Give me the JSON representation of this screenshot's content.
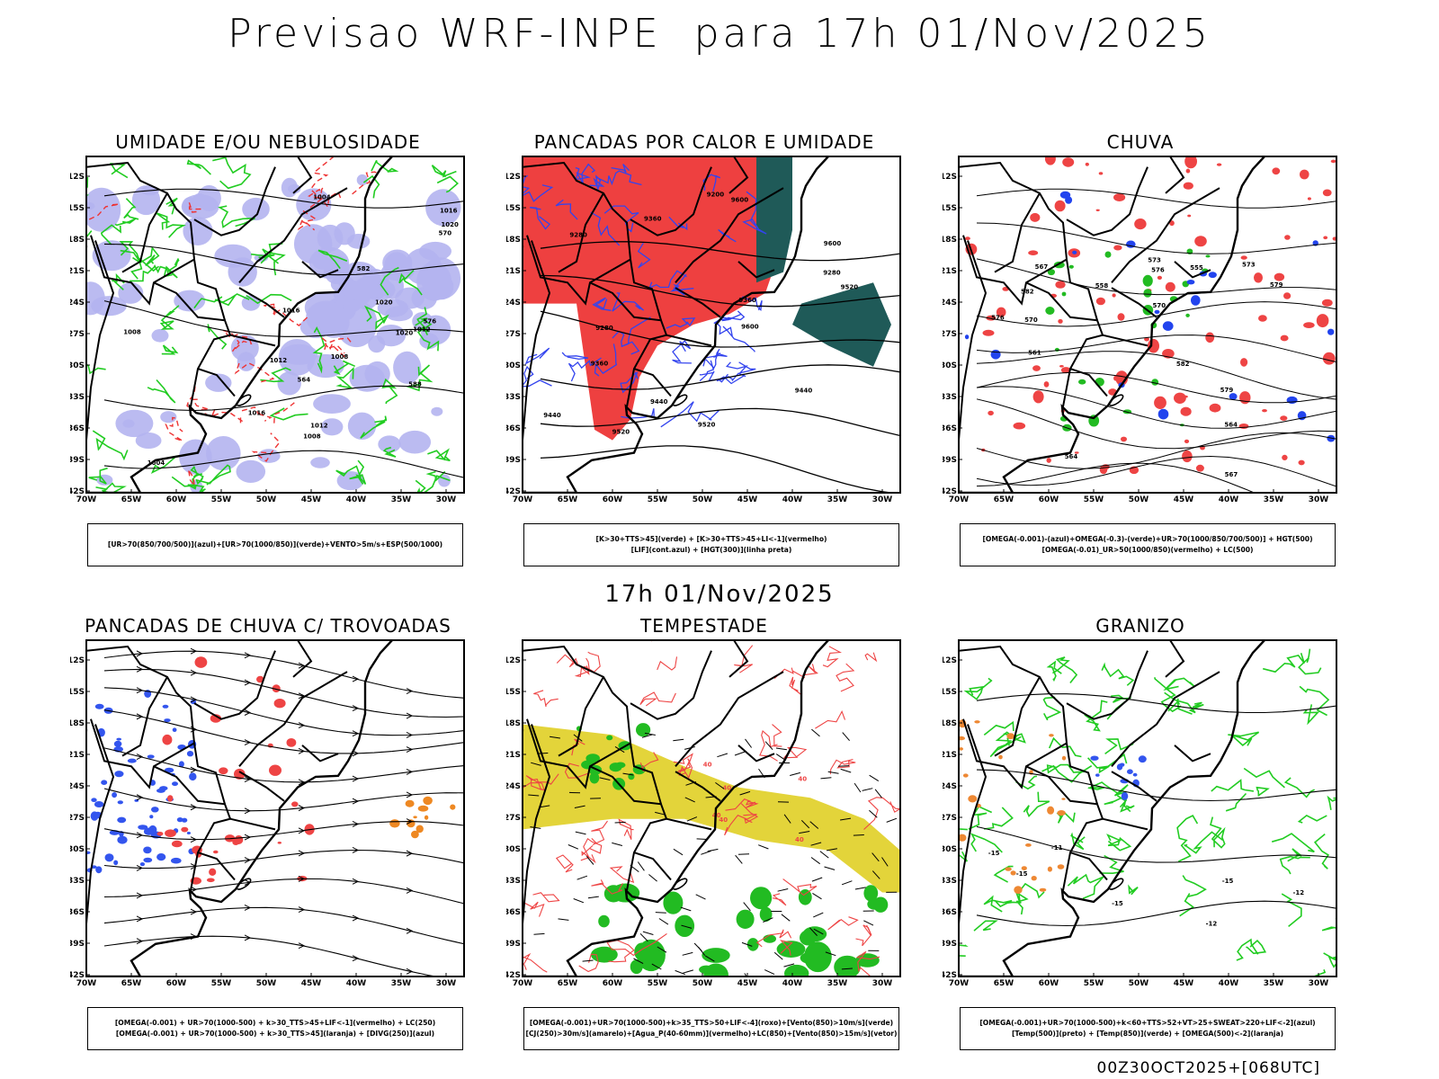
{
  "header": {
    "title": "Previsao WRF-INPE  para 17h 01/Nov/2025",
    "subtitle": "17h 01/Nov/2025",
    "footer": "00Z30OCT2025+[068UTC]"
  },
  "axes": {
    "lat_labels": [
      "12S",
      "15S",
      "18S",
      "21S",
      "24S",
      "27S",
      "30S",
      "33S",
      "36S",
      "39S",
      "42S"
    ],
    "lon_labels": [
      "70W",
      "65W",
      "60W",
      "55W",
      "50W",
      "45W",
      "40W",
      "35W",
      "30W"
    ]
  },
  "panels": [
    {
      "title": "UMIDADE E/OU NEBULOSIDADE",
      "legend": [
        "[UR>70(850/700/500)](azul)+[UR>70(1000/850)](verde)+VENTO>5m/s+ESP(500/1000)"
      ],
      "contour_labels": [
        "1004",
        "1008",
        "1008",
        "1012",
        "1016",
        "1020",
        "1020",
        "1012",
        "1016",
        "1020",
        "1016",
        "1012",
        "1008",
        "1004",
        "564",
        "570",
        "576",
        "582",
        "588"
      ]
    },
    {
      "title": "PANCADAS POR CALOR E UMIDADE",
      "legend": [
        "[K>30+TTS>45](verde) + [K>30+TTS>45+LI<-1](vermelho)",
        "[LIF](cont.azul) + [HGT(300)](linha preta)"
      ],
      "contour_labels": [
        "9600",
        "9520",
        "9440",
        "9360",
        "9280",
        "9200",
        "9600",
        "9520",
        "9440",
        "9360",
        "9280",
        "9600",
        "9520",
        "9440",
        "9360",
        "9280"
      ]
    },
    {
      "title": "CHUVA",
      "legend": [
        "[OMEGA(-0.001)-(azul)+OMEGA(-0.3)-(verde)+UR>70(1000/850/700/500)] + HGT(500)",
        "[OMEGA(-0.01)_UR>50(1000/850)(vermelho) + LC(500)"
      ],
      "contour_labels": [
        "582",
        "579",
        "576",
        "573",
        "570",
        "567",
        "564",
        "561",
        "558",
        "555",
        "564",
        "567",
        "570",
        "573",
        "576",
        "579",
        "582"
      ]
    },
    {
      "title": "PANCADAS DE CHUVA C/ TROVOADAS",
      "legend": [
        "[OMEGA(-0.001) + UR>70(1000-500) + k>30_TTS>45+LIF<-1](vermelho) + LC(250)",
        "[OMEGA(-0.001) + UR>70(1000-500) + k>30_TTS>45](laranja) + [DIVG(250)](azul)"
      ],
      "contour_labels": []
    },
    {
      "title": "TEMPESTADE",
      "legend": [
        "[OMEGA(-0.001)+UR>70(1000-500)+k>35_TTS>50+LIF<-4](roxo)+[Vento(850)>10m/s](verde)",
        "[CJ(250)>30m/s](amarelo)+[Agua_P(40-60mm)](vermelho)+LC(850)+[Vento(850)>15m/s](vetor)"
      ],
      "contour_labels": [
        "40",
        "40",
        "40",
        "40",
        "40",
        "40"
      ]
    },
    {
      "title": "GRANIZO",
      "legend": [
        "[OMEGA(-0.001)+UR>70(1000-500)+k<60+TTS>52+VT>25+SWEAT>220+LIF<-2](azul)",
        "[Temp(500)](preto) + [Temp(850)](verde) + [OMEGA(500)<-2](laranja)"
      ],
      "contour_labels": [
        "-12",
        "-15",
        "-15",
        "-15",
        "-12",
        "-11",
        "-15"
      ]
    }
  ]
}
